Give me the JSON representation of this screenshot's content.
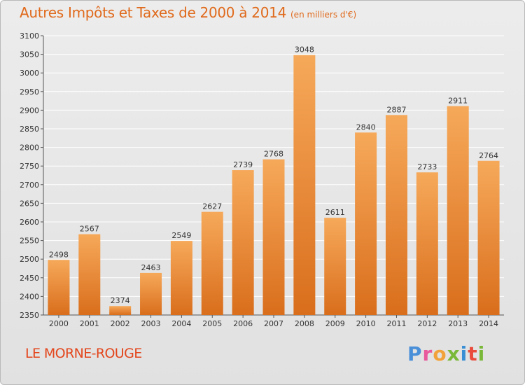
{
  "title": "Autres Impôts et Taxes de 2000 à 2014",
  "unit_label": "(en milliers d'€)",
  "place_name": "LE MORNE-ROUGE",
  "logo": {
    "text": "Proxiti",
    "letters": [
      {
        "char": "P",
        "color": "#4a90d9"
      },
      {
        "char": "r",
        "color": "#e85a9c"
      },
      {
        "char": "o",
        "color": "#f2a23a"
      },
      {
        "char": "x",
        "color": "#7ab83a"
      },
      {
        "char": "i",
        "color": "#3a8fd4"
      },
      {
        "char": "t",
        "color": "#e94b3c"
      },
      {
        "char": "i",
        "color": "#7ab83a"
      }
    ]
  },
  "colors": {
    "bar_light": "#f6a95a",
    "bar_dark": "#d96e1c",
    "grid": "#ffffff",
    "title": "#e06a1c",
    "place": "#e3461c"
  },
  "chart_data": {
    "type": "bar",
    "categories": [
      "2000",
      "2001",
      "2002",
      "2003",
      "2004",
      "2005",
      "2006",
      "2007",
      "2008",
      "2009",
      "2010",
      "2011",
      "2012",
      "2013",
      "2014"
    ],
    "values": [
      2498,
      2567,
      2374,
      2463,
      2549,
      2627,
      2739,
      2768,
      3048,
      2611,
      2840,
      2887,
      2733,
      2911,
      2764
    ],
    "ylim": [
      2350,
      3100
    ],
    "yticks": [
      2350,
      2400,
      2450,
      2500,
      2550,
      2600,
      2650,
      2700,
      2750,
      2800,
      2850,
      2900,
      2950,
      3000,
      3050,
      3100
    ],
    "grid": true,
    "data_labels": true
  }
}
